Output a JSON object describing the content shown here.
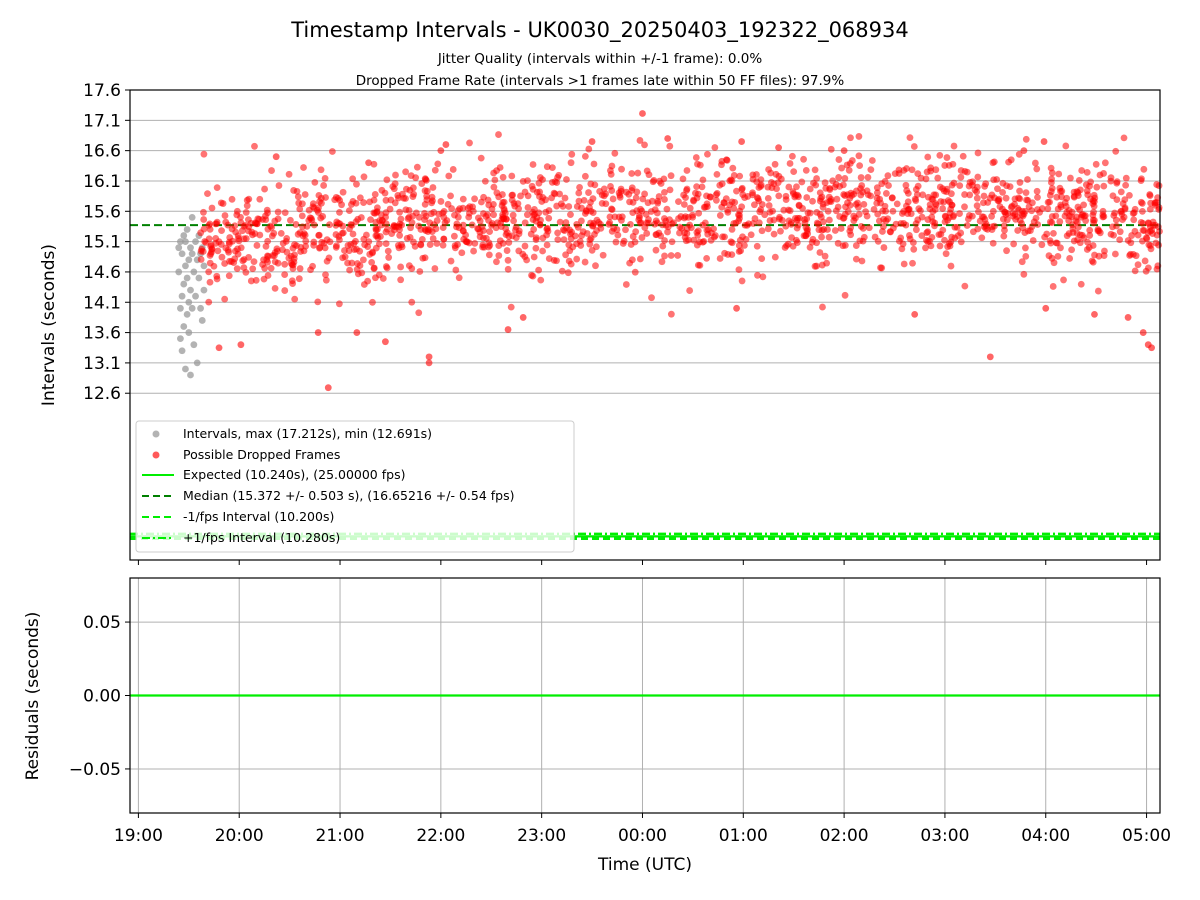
{
  "figure": {
    "title": "Timestamp Intervals - UK0030_20250403_192322_068934",
    "subtitle_1": "Jitter Quality (intervals within +/-1 frame): 0.0%",
    "subtitle_2": "Dropped Frame Rate (intervals >1 frames late within 50 FF files): 97.9%"
  },
  "chart_data": [
    {
      "type": "scatter",
      "panel": "top",
      "xlabel": "",
      "ylabel": "Intervals (seconds)",
      "x_time_range": [
        "18:55",
        "05:08"
      ],
      "ylim": [
        9.85,
        17.6
      ],
      "y_ticks": [
        "17.6",
        "17.1",
        "16.6",
        "16.1",
        "15.6",
        "15.1",
        "14.6",
        "14.1",
        "13.6",
        "13.1",
        "12.6"
      ],
      "grid": true,
      "legend_position": "lower-left",
      "legend": [
        {
          "label": "Intervals, max (17.212s), min (12.691s)",
          "marker": "circle",
          "color": "#999999"
        },
        {
          "label": "Possible Dropped Frames",
          "marker": "circle",
          "color": "#ff0000"
        },
        {
          "label": "Expected (10.240s), (25.00000 fps)",
          "marker": "line",
          "style": "solid",
          "color": "#00ee00"
        },
        {
          "label": "Median (15.372 +/- 0.503 s), (16.65216 +/- 0.54 fps)",
          "marker": "line",
          "style": "dashed",
          "color": "#008000"
        },
        {
          "label": "-1/fps Interval (10.200s)",
          "marker": "line",
          "style": "dashed",
          "color": "#00ee00"
        },
        {
          "label": "+1/fps Interval (10.280s)",
          "marker": "line",
          "style": "dashdot",
          "color": "#00ee00"
        }
      ],
      "reference_lines": {
        "expected": 10.24,
        "minus_one_fps": 10.2,
        "plus_one_fps": 10.28,
        "median": 15.372
      },
      "series": [
        {
          "name": "Intervals, max (17.212s), min (12.691s)",
          "color": "#999999",
          "points": [
            [
              "19:24",
              15.0
            ],
            [
              "19:24",
              14.6
            ],
            [
              "19:25",
              14.0
            ],
            [
              "19:25",
              13.5
            ],
            [
              "19:25",
              15.1
            ],
            [
              "19:26",
              14.9
            ],
            [
              "19:26",
              14.2
            ],
            [
              "19:26",
              13.3
            ],
            [
              "19:27",
              15.2
            ],
            [
              "19:27",
              14.4
            ],
            [
              "19:27",
              13.7
            ],
            [
              "19:28",
              14.7
            ],
            [
              "19:28",
              13.0
            ],
            [
              "19:28",
              15.1
            ],
            [
              "19:29",
              14.5
            ],
            [
              "19:29",
              13.9
            ],
            [
              "19:29",
              15.3
            ],
            [
              "19:30",
              14.8
            ],
            [
              "19:30",
              14.1
            ],
            [
              "19:30",
              13.6
            ],
            [
              "19:31",
              15.0
            ],
            [
              "19:31",
              14.3
            ],
            [
              "19:31",
              12.9
            ],
            [
              "19:32",
              14.9
            ],
            [
              "19:32",
              15.5
            ],
            [
              "19:32",
              14.0
            ],
            [
              "19:33",
              14.6
            ],
            [
              "19:33",
              13.4
            ],
            [
              "19:34",
              15.1
            ],
            [
              "19:34",
              14.2
            ],
            [
              "19:35",
              14.8
            ],
            [
              "19:35",
              13.1
            ],
            [
              "19:36",
              15.2
            ],
            [
              "19:36",
              14.5
            ],
            [
              "19:37",
              14.0
            ],
            [
              "19:37",
              14.9
            ],
            [
              "19:38",
              13.8
            ],
            [
              "19:38",
              15.0
            ],
            [
              "19:39",
              14.3
            ],
            [
              "19:39",
              14.7
            ]
          ]
        },
        {
          "name": "Possible Dropped Frames",
          "color": "#ff0000",
          "generated": {
            "start": "19:37",
            "end": "05:08",
            "count": 1750,
            "trend": "rises from ~15.1 to ~15.6, falls to ~15.35 near 05:00",
            "spread_sd": 0.45
          },
          "points": [
            [
              "20:53",
              12.691
            ],
            [
              "00:00",
              17.212
            ],
            [
              "21:53",
              13.1
            ],
            [
              "21:53",
              13.2
            ],
            [
              "03:27",
              13.2
            ],
            [
              "05:03",
              13.35
            ],
            [
              "05:01",
              13.4
            ],
            [
              "04:58",
              13.6
            ],
            [
              "22:03",
              16.7
            ],
            [
              "22:00",
              16.6
            ],
            [
              "00:15",
              16.8
            ],
            [
              "00:59",
              16.75
            ],
            [
              "03:59",
              16.75
            ],
            [
              "03:47",
              16.6
            ],
            [
              "02:00",
              16.6
            ],
            [
              "01:21",
              16.65
            ],
            [
              "23:30",
              16.75
            ],
            [
              "20:22",
              16.5
            ],
            [
              "21:17",
              16.4
            ],
            [
              "00:50",
              16.45
            ],
            [
              "19:48",
              13.35
            ],
            [
              "20:01",
              13.4
            ],
            [
              "20:47",
              13.6
            ],
            [
              "21:10",
              13.6
            ],
            [
              "21:27",
              13.45
            ],
            [
              "22:40",
              13.65
            ],
            [
              "22:49",
              13.85
            ],
            [
              "00:56",
              14.0
            ],
            [
              "02:42",
              13.9
            ],
            [
              "04:00",
              14.0
            ],
            [
              "04:29",
              13.9
            ],
            [
              "04:49",
              13.85
            ]
          ]
        }
      ]
    },
    {
      "type": "line",
      "panel": "bottom",
      "xlabel": "Time (UTC)",
      "ylabel": "Residuals (seconds)",
      "ylim": [
        -0.08,
        0.08
      ],
      "y_ticks": [
        "0.05",
        "0.00",
        "−0.05"
      ],
      "x_ticks": [
        "19:00",
        "20:00",
        "21:00",
        "22:00",
        "23:00",
        "00:00",
        "01:00",
        "02:00",
        "03:00",
        "04:00",
        "05:00"
      ],
      "grid": true,
      "series": [
        {
          "color": "#00ee00",
          "points": [
            [
              "18:55",
              0.0
            ],
            [
              "05:08",
              0.0
            ]
          ]
        }
      ]
    }
  ]
}
